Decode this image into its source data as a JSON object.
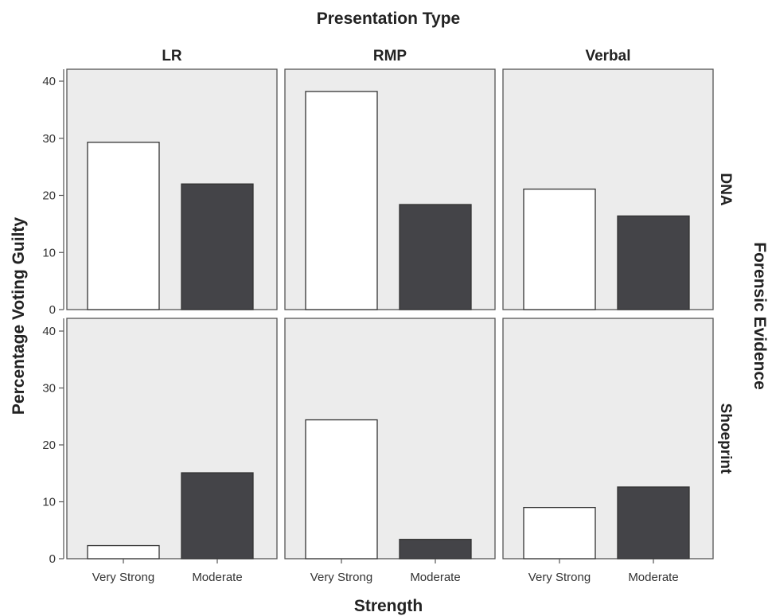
{
  "chart_data": {
    "type": "bar",
    "title": "Presentation Type",
    "xlabel": "Strength",
    "ylabel": "Percentage Voting Guilty",
    "row_label": "Forensic Evidence",
    "columns": [
      "LR",
      "RMP",
      "Verbal"
    ],
    "rows": [
      "DNA",
      "Shoeprint"
    ],
    "categories": [
      "Very Strong",
      "Moderate"
    ],
    "ylim": [
      0,
      40
    ],
    "yticks": [
      "0",
      "10",
      "20",
      "30",
      "40"
    ],
    "grid": false,
    "colors": {
      "Very Strong": "#ffffff",
      "Moderate": "#444448",
      "panel": "#ececec"
    },
    "panels": [
      {
        "row": "DNA",
        "column": "LR",
        "values": [
          29.3,
          22.0
        ]
      },
      {
        "row": "DNA",
        "column": "RMP",
        "values": [
          38.2,
          18.4
        ]
      },
      {
        "row": "DNA",
        "column": "Verbal",
        "values": [
          21.1,
          16.4
        ]
      },
      {
        "row": "Shoeprint",
        "column": "LR",
        "values": [
          2.3,
          15.1
        ]
      },
      {
        "row": "Shoeprint",
        "column": "RMP",
        "values": [
          24.4,
          3.4
        ]
      },
      {
        "row": "Shoeprint",
        "column": "Verbal",
        "values": [
          9.0,
          12.6
        ]
      }
    ]
  }
}
